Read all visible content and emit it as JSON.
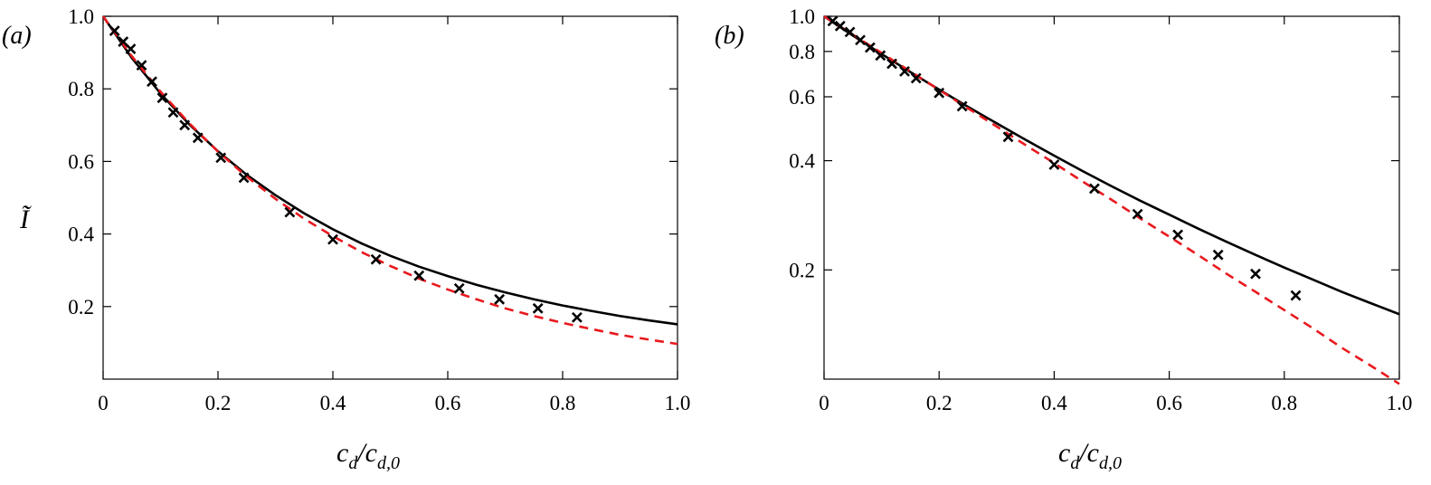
{
  "chart_data": [
    {
      "type": "line",
      "panel_label": "(a)",
      "xlabel": "c_d/c_d,0",
      "xlabel_main": "c",
      "xlabel_sub1": "d",
      "xlabel_sub2": "d,0",
      "ylabel": "Ĩ",
      "xlim": [
        0,
        1.0
      ],
      "ylim": [
        0,
        1.0
      ],
      "y_scale": "linear",
      "x_ticks": [
        "0",
        "0.2",
        "0.4",
        "0.6",
        "0.8",
        "1.0"
      ],
      "y_ticks": [
        "0.2",
        "0.4",
        "0.6",
        "0.8",
        "1.0"
      ],
      "grid": false,
      "series": [
        {
          "style": "solid-black",
          "x": [
            0,
            0.05,
            0.1,
            0.15,
            0.2,
            0.25,
            0.3,
            0.35,
            0.4,
            0.45,
            0.5,
            0.55,
            0.6,
            0.65,
            0.7,
            0.75,
            0.8,
            0.85,
            0.9,
            0.95,
            1.0
          ],
          "y": [
            1.0,
            0.885,
            0.787,
            0.702,
            0.628,
            0.563,
            0.507,
            0.457,
            0.413,
            0.374,
            0.34,
            0.31,
            0.284,
            0.26,
            0.239,
            0.22,
            0.203,
            0.188,
            0.174,
            0.162,
            0.151
          ]
        },
        {
          "style": "dashed-red",
          "x": [
            0,
            0.05,
            0.1,
            0.15,
            0.2,
            0.25,
            0.3,
            0.35,
            0.4,
            0.45,
            0.5,
            0.55,
            0.6,
            0.65,
            0.7,
            0.75,
            0.8,
            0.85,
            0.9,
            0.95,
            1.0
          ],
          "y": [
            1.0,
            0.89,
            0.792,
            0.705,
            0.627,
            0.558,
            0.497,
            0.442,
            0.394,
            0.35,
            0.312,
            0.277,
            0.247,
            0.22,
            0.195,
            0.174,
            0.155,
            0.138,
            0.122,
            0.109,
            0.097
          ]
        },
        {
          "style": "cross-markers",
          "x": [
            0.02,
            0.035,
            0.048,
            0.067,
            0.085,
            0.103,
            0.122,
            0.142,
            0.165,
            0.205,
            0.245,
            0.325,
            0.4,
            0.475,
            0.55,
            0.62,
            0.69,
            0.757,
            0.825
          ],
          "y": [
            0.96,
            0.93,
            0.91,
            0.865,
            0.82,
            0.775,
            0.735,
            0.7,
            0.665,
            0.61,
            0.555,
            0.46,
            0.385,
            0.33,
            0.285,
            0.25,
            0.22,
            0.195,
            0.17
          ]
        }
      ]
    },
    {
      "type": "line",
      "panel_label": "(b)",
      "xlabel": "c_d/c_d,0",
      "xlabel_main": "c",
      "xlabel_sub1": "d",
      "xlabel_sub2": "d,0",
      "xlim": [
        0,
        1.0
      ],
      "ylim": [
        0.1,
        1.0
      ],
      "y_scale": "log",
      "x_ticks": [
        "0",
        "0.2",
        "0.4",
        "0.6",
        "0.8",
        "1.0"
      ],
      "y_ticks": [
        "0.2",
        "0.4",
        "0.6",
        "0.8",
        "1.0"
      ],
      "grid": false,
      "series": [
        {
          "style": "solid-black",
          "x": [
            0,
            0.05,
            0.1,
            0.15,
            0.2,
            0.25,
            0.3,
            0.35,
            0.4,
            0.45,
            0.5,
            0.55,
            0.6,
            0.65,
            0.7,
            0.75,
            0.8,
            0.85,
            0.9,
            0.95,
            1.0
          ],
          "y": [
            1.0,
            0.885,
            0.787,
            0.702,
            0.628,
            0.563,
            0.507,
            0.457,
            0.413,
            0.374,
            0.34,
            0.31,
            0.284,
            0.26,
            0.239,
            0.22,
            0.203,
            0.188,
            0.174,
            0.162,
            0.151
          ]
        },
        {
          "style": "dashed-red",
          "x": [
            0,
            0.05,
            0.1,
            0.15,
            0.2,
            0.25,
            0.3,
            0.35,
            0.4,
            0.45,
            0.5,
            0.55,
            0.6,
            0.65,
            0.7,
            0.75,
            0.8,
            0.85,
            0.9,
            0.95,
            1.0
          ],
          "y": [
            1.0,
            0.89,
            0.792,
            0.705,
            0.627,
            0.558,
            0.497,
            0.442,
            0.394,
            0.35,
            0.312,
            0.277,
            0.247,
            0.22,
            0.195,
            0.174,
            0.155,
            0.138,
            0.122,
            0.109,
            0.097
          ]
        },
        {
          "style": "cross-markers",
          "x": [
            0.015,
            0.028,
            0.045,
            0.063,
            0.08,
            0.098,
            0.118,
            0.14,
            0.16,
            0.2,
            0.24,
            0.32,
            0.4,
            0.47,
            0.545,
            0.615,
            0.685,
            0.75,
            0.82
          ],
          "y": [
            0.97,
            0.94,
            0.905,
            0.86,
            0.82,
            0.78,
            0.74,
            0.705,
            0.675,
            0.615,
            0.565,
            0.465,
            0.39,
            0.335,
            0.285,
            0.25,
            0.22,
            0.195,
            0.17
          ]
        }
      ]
    }
  ]
}
